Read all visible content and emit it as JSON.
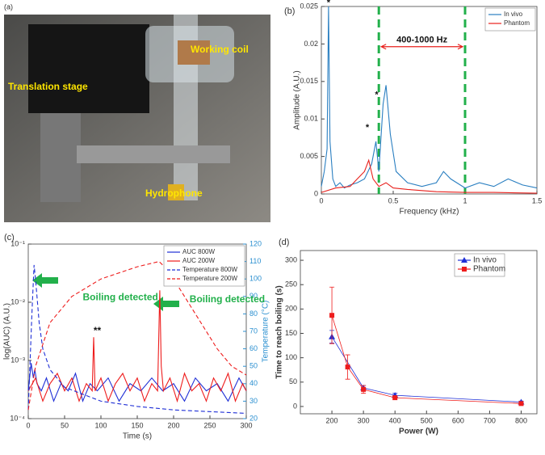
{
  "photo": {
    "panel_label": "(a)",
    "annotations": [
      "Working coil",
      "Translation stage",
      "Hydrophone"
    ]
  },
  "chart_data": [
    {
      "type": "line",
      "panel_label": "(b)",
      "x_label": "Frequency (kHz)",
      "y_label": "Amplitude (A.U.)",
      "xlim": [
        0,
        1.5
      ],
      "xticks": [
        0,
        0.5,
        1,
        1.5
      ],
      "ylim": [
        0,
        0.025
      ],
      "yticks": [
        0,
        0.005,
        0.01,
        0.015,
        0.02,
        0.025
      ],
      "legend": "upper right",
      "vlines": [
        0.4,
        1
      ],
      "vline_color": "#22b04b",
      "annotations": [
        "*",
        "*",
        "*",
        "400-1000 Hz"
      ],
      "series": [
        {
          "name": "In vivo",
          "color": "#2a7fc1",
          "x": [
            0,
            0.02,
            0.04,
            0.05,
            0.06,
            0.08,
            0.1,
            0.13,
            0.16,
            0.2,
            0.25,
            0.3,
            0.35,
            0.38,
            0.4,
            0.43,
            0.45,
            0.48,
            0.52,
            0.6,
            0.7,
            0.8,
            0.85,
            0.9,
            1,
            1.1,
            1.2,
            1.3,
            1.4,
            1.5
          ],
          "values": [
            0.001,
            0.003,
            0.006,
            0.025,
            0.007,
            0.002,
            0.001,
            0.0015,
            0.0008,
            0.0012,
            0.0015,
            0.002,
            0.004,
            0.007,
            0.003,
            0.012,
            0.0145,
            0.008,
            0.003,
            0.0015,
            0.001,
            0.0015,
            0.003,
            0.002,
            0.0008,
            0.0015,
            0.001,
            0.002,
            0.0012,
            0.0008
          ]
        },
        {
          "name": "Phantom",
          "color": "#e8201c",
          "x": [
            0,
            0.1,
            0.2,
            0.25,
            0.3,
            0.33,
            0.36,
            0.4,
            0.45,
            0.5,
            0.6,
            0.8,
            1,
            1.2,
            1.5
          ],
          "values": [
            0.0002,
            0.0008,
            0.001,
            0.002,
            0.003,
            0.0045,
            0.002,
            0.001,
            0.0015,
            0.0008,
            0.0006,
            0.0003,
            0.0002,
            0.0002,
            0.0001
          ]
        }
      ]
    },
    {
      "type": "line",
      "panel_label": "(c)",
      "x_label": "Time (s)",
      "y_label": "log(AUC) (A.U.)",
      "y2_label": "Temperature (°C)",
      "xlim": [
        0,
        300
      ],
      "xticks": [
        0,
        50,
        100,
        150,
        200,
        250,
        300
      ],
      "log_y": true,
      "ylim": [
        0.0001,
        0.1
      ],
      "yticks": [
        {
          "value": 0.0001,
          "label": "10⁻⁴"
        },
        {
          "value": 0.001,
          "label": "10⁻³"
        },
        {
          "value": 0.01,
          "label": "10⁻²"
        },
        {
          "value": 0.1,
          "label": "10⁻¹"
        }
      ],
      "y2lim": [
        20,
        120
      ],
      "y2ticks": [
        20,
        30,
        40,
        50,
        60,
        70,
        80,
        90,
        100,
        110,
        120
      ],
      "y2_color": "#2a8fd0",
      "legend": "upper right",
      "annotations": [
        "Boiling detected",
        "Boiling detected",
        "**"
      ],
      "series": [
        {
          "name": "AUC 800W",
          "color": "#1f2fd6",
          "style": "solid",
          "x": [
            0,
            4,
            7,
            9,
            12,
            18,
            25,
            35,
            45,
            55,
            65,
            75,
            85,
            95,
            110,
            125,
            140,
            155,
            170,
            185,
            200,
            215,
            230,
            245,
            260,
            275,
            290,
            300
          ],
          "values": [
            0.0003,
            0.0009,
            0.0005,
            0.0007,
            0.0004,
            0.0003,
            0.0005,
            0.0002,
            0.0004,
            0.0003,
            0.0006,
            0.0002,
            0.0004,
            0.0003,
            0.0005,
            0.0002,
            0.0004,
            0.0003,
            0.0005,
            0.0003,
            0.0004,
            0.0002,
            0.0005,
            0.0003,
            0.0004,
            0.0002,
            0.0005,
            0.0003
          ]
        },
        {
          "name": "AUC 200W",
          "color": "#ee1c1c",
          "style": "solid",
          "x": [
            0,
            10,
            20,
            30,
            40,
            50,
            60,
            70,
            80,
            88,
            90,
            92,
            100,
            110,
            120,
            130,
            140,
            150,
            160,
            170,
            178,
            181,
            183,
            186,
            195,
            205,
            215,
            225,
            235,
            245,
            255,
            265,
            275,
            285,
            295,
            300
          ],
          "values": [
            0.0003,
            0.0005,
            0.0002,
            0.0004,
            0.0006,
            0.0003,
            0.0005,
            0.0002,
            0.0004,
            0.0003,
            0.0025,
            0.0003,
            0.0005,
            0.0002,
            0.0004,
            0.0006,
            0.0003,
            0.0005,
            0.0002,
            0.0004,
            0.0003,
            0.016,
            0.0008,
            0.0003,
            0.0005,
            0.0002,
            0.0006,
            0.0003,
            0.0004,
            0.0002,
            0.0005,
            0.0003,
            0.0006,
            0.0002,
            0.0004,
            0.0003
          ]
        },
        {
          "name": "Temperature 800W",
          "color": "#1f2fd6",
          "style": "dashed",
          "axis": "y2",
          "x": [
            0,
            5,
            8,
            10,
            15,
            20,
            30,
            50,
            100,
            150,
            200,
            300
          ],
          "values": [
            25,
            80,
            108,
            100,
            75,
            60,
            48,
            38,
            30,
            27,
            25,
            23
          ]
        },
        {
          "name": "Temperature 200W",
          "color": "#ee1c1c",
          "style": "dashed",
          "axis": "y2",
          "x": [
            0,
            10,
            30,
            60,
            100,
            150,
            180,
            185,
            200,
            230,
            260,
            280,
            300
          ],
          "values": [
            25,
            50,
            75,
            90,
            100,
            107,
            110,
            108,
            100,
            80,
            60,
            50,
            45
          ]
        }
      ]
    },
    {
      "type": "line",
      "panel_label": "(d)",
      "x_label": "Power (W)",
      "y_label": "Time to reach boiling (s)",
      "xlim": [
        100,
        850
      ],
      "xticks": [
        200,
        300,
        400,
        500,
        600,
        700,
        800
      ],
      "ylim": [
        -15,
        320
      ],
      "yticks": [
        0,
        50,
        100,
        150,
        200,
        250,
        300
      ],
      "legend": "upper right",
      "series": [
        {
          "name": "In vivo",
          "color": "#1f2fd6",
          "marker": "triangle",
          "x": [
            200,
            300,
            400,
            800
          ],
          "values": [
            143,
            38,
            23,
            9
          ],
          "errors": [
            13,
            5,
            4,
            2
          ]
        },
        {
          "name": "Phantom",
          "color": "#ee1c1c",
          "marker": "square",
          "x": [
            200,
            250,
            300,
            400,
            800
          ],
          "values": [
            187,
            81,
            35,
            18,
            6
          ],
          "errors": [
            58,
            25,
            8,
            3,
            2
          ]
        }
      ]
    }
  ]
}
